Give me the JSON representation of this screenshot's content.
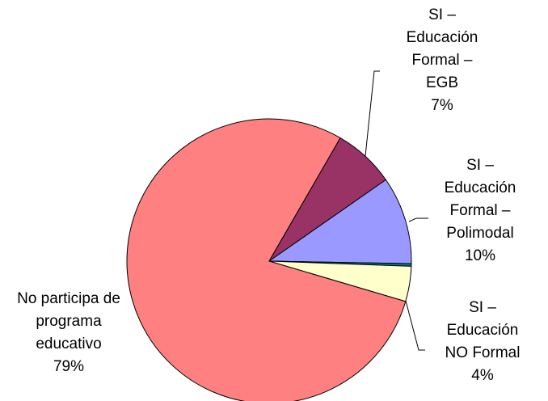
{
  "chart_data": {
    "type": "pie",
    "categories": [
      "SI – Educación Formal – EGB",
      "SI – Educación Formal – Polimodal",
      null,
      "SI – Educación NO Formal",
      "No participa de programa educativo"
    ],
    "values": [
      7,
      10,
      0.3,
      4,
      79
    ],
    "value_labels": [
      "7%",
      "10%",
      null,
      "4%",
      "79%"
    ],
    "colors": [
      "#993366",
      "#9999FF",
      "#008080",
      "#FFFFCC",
      "#FF8080"
    ]
  }
}
